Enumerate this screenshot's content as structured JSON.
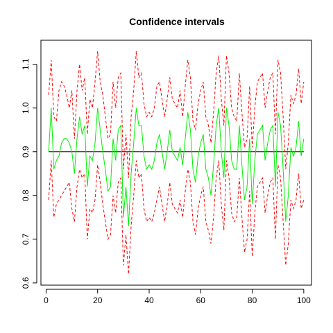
{
  "chart_data": {
    "type": "line",
    "title": "Confidence intervals",
    "xlabel": "",
    "ylabel": "",
    "xlim": [
      -2,
      103
    ],
    "ylim": [
      0.595,
      1.155
    ],
    "x_ticks": [
      0,
      20,
      40,
      60,
      80,
      100
    ],
    "y_ticks": [
      0.6,
      0.7,
      0.8,
      0.9,
      1.0,
      1.1
    ],
    "x_tick_labels": [
      "0",
      "20",
      "40",
      "60",
      "80",
      "100"
    ],
    "y_tick_labels": [
      "0.6",
      "0.7",
      "0.8",
      "0.9",
      "1.0",
      "1.1"
    ],
    "grid": false,
    "legend": "none",
    "reference_line": {
      "y": 0.9,
      "color": "#000000"
    },
    "colors": {
      "estimate": "#00ee00",
      "bounds": "#ff0000",
      "reference": "#000000"
    },
    "x": [
      1,
      2,
      3,
      4,
      5,
      6,
      7,
      8,
      9,
      10,
      11,
      12,
      13,
      14,
      15,
      16,
      17,
      18,
      19,
      20,
      21,
      22,
      23,
      24,
      25,
      26,
      27,
      28,
      29,
      30,
      31,
      32,
      33,
      34,
      35,
      36,
      37,
      38,
      39,
      40,
      41,
      42,
      43,
      44,
      45,
      46,
      47,
      48,
      49,
      50,
      51,
      52,
      53,
      54,
      55,
      56,
      57,
      58,
      59,
      60,
      61,
      62,
      63,
      64,
      65,
      66,
      67,
      68,
      69,
      70,
      71,
      72,
      73,
      74,
      75,
      76,
      77,
      78,
      79,
      80,
      81,
      82,
      83,
      84,
      85,
      86,
      87,
      88,
      89,
      90,
      91,
      92,
      93,
      94,
      95,
      96,
      97,
      98,
      99,
      100
    ],
    "series": [
      {
        "key": "estimate",
        "values": [
          0.9,
          1.0,
          0.86,
          0.88,
          0.89,
          0.92,
          0.93,
          0.93,
          0.92,
          0.9,
          0.85,
          0.93,
          0.98,
          0.94,
          0.96,
          0.82,
          0.89,
          0.88,
          0.92,
          1.0,
          0.95,
          0.9,
          0.86,
          0.81,
          0.82,
          0.93,
          0.88,
          0.95,
          0.96,
          0.75,
          0.82,
          0.73,
          0.85,
          0.92,
          1.0,
          0.96,
          0.96,
          0.89,
          0.86,
          0.87,
          0.86,
          0.88,
          0.92,
          0.94,
          0.9,
          0.86,
          0.9,
          0.95,
          0.9,
          0.89,
          0.88,
          0.91,
          0.87,
          0.93,
          0.99,
          0.95,
          0.86,
          0.83,
          0.89,
          0.92,
          0.94,
          0.86,
          0.84,
          0.8,
          0.87,
          0.96,
          1.0,
          0.9,
          0.84,
          1.0,
          0.96,
          0.88,
          0.86,
          0.86,
          0.96,
          0.87,
          0.79,
          0.82,
          0.93,
          0.78,
          0.88,
          0.94,
          0.95,
          0.96,
          0.88,
          0.92,
          0.95,
          0.96,
          0.82,
          0.99,
          0.96,
          0.86,
          0.74,
          0.8,
          0.91,
          0.89,
          0.91,
          0.97,
          0.89,
          0.93
        ]
      },
      {
        "key": "upper",
        "values": [
          1.03,
          1.11,
          0.98,
          0.97,
          1.04,
          1.06,
          1.05,
          1.03,
          1.0,
          1.04,
          0.93,
          1.04,
          1.1,
          1.04,
          1.07,
          0.94,
          1.02,
          1.0,
          1.06,
          1.13,
          1.06,
          1.03,
          0.98,
          0.93,
          0.94,
          1.06,
          1.0,
          1.07,
          1.08,
          0.86,
          0.94,
          0.84,
          0.98,
          1.04,
          1.13,
          1.07,
          1.08,
          1.01,
          0.98,
          0.99,
          0.98,
          1.0,
          1.05,
          1.06,
          1.02,
          0.98,
          1.02,
          1.07,
          1.02,
          1.01,
          1.0,
          1.04,
          0.98,
          1.05,
          1.11,
          1.07,
          0.97,
          0.95,
          1.01,
          1.04,
          1.06,
          0.98,
          0.96,
          0.92,
          0.99,
          1.08,
          1.12,
          1.02,
          0.96,
          1.12,
          1.08,
          1.0,
          0.98,
          0.97,
          1.08,
          0.99,
          0.91,
          0.93,
          1.05,
          0.91,
          1.0,
          1.06,
          1.07,
          1.08,
          1.0,
          1.04,
          1.07,
          1.08,
          0.94,
          1.11,
          1.08,
          0.98,
          0.86,
          0.92,
          1.03,
          1.01,
          1.03,
          1.09,
          1.01,
          1.06
        ]
      },
      {
        "key": "lower",
        "values": [
          0.79,
          0.88,
          0.75,
          0.78,
          0.79,
          0.8,
          0.81,
          0.82,
          0.83,
          0.77,
          0.74,
          0.82,
          0.86,
          0.84,
          0.85,
          0.7,
          0.77,
          0.76,
          0.79,
          0.87,
          0.83,
          0.78,
          0.74,
          0.7,
          0.71,
          0.8,
          0.76,
          0.83,
          0.84,
          0.64,
          0.71,
          0.62,
          0.73,
          0.8,
          0.88,
          0.84,
          0.85,
          0.77,
          0.74,
          0.75,
          0.74,
          0.76,
          0.79,
          0.82,
          0.78,
          0.74,
          0.78,
          0.83,
          0.78,
          0.77,
          0.76,
          0.79,
          0.75,
          0.81,
          0.86,
          0.83,
          0.74,
          0.71,
          0.77,
          0.8,
          0.82,
          0.74,
          0.72,
          0.69,
          0.75,
          0.84,
          0.88,
          0.78,
          0.72,
          0.88,
          0.84,
          0.76,
          0.74,
          0.75,
          0.84,
          0.75,
          0.67,
          0.7,
          0.81,
          0.66,
          0.76,
          0.82,
          0.83,
          0.84,
          0.76,
          0.8,
          0.83,
          0.84,
          0.7,
          0.87,
          0.84,
          0.74,
          0.64,
          0.69,
          0.79,
          0.77,
          0.79,
          0.85,
          0.77,
          0.79
        ]
      }
    ]
  }
}
